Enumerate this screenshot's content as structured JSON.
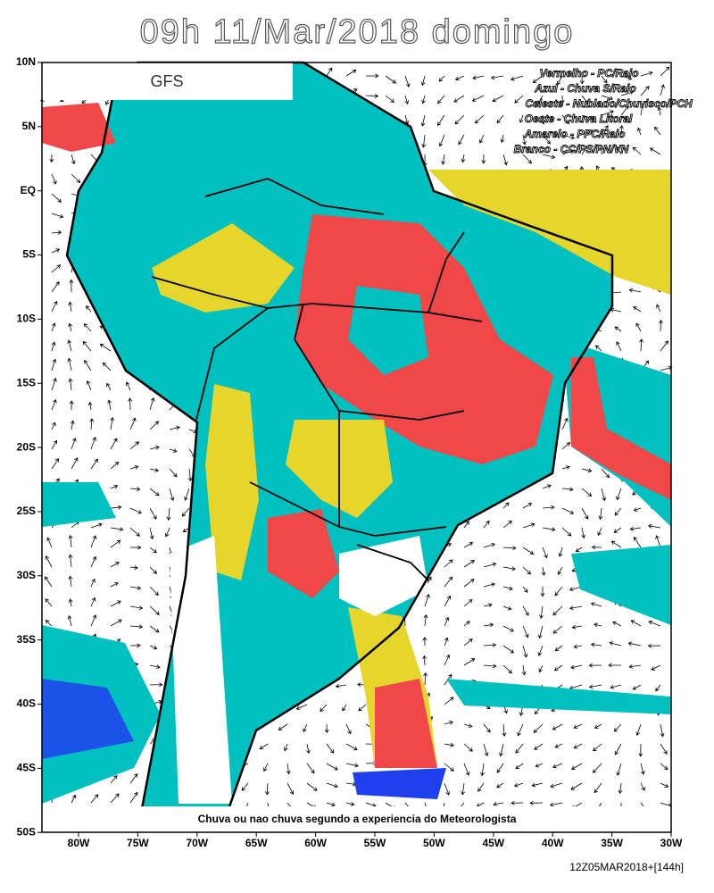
{
  "title": "09h 11/Mar/2018 domingo",
  "model": "GFS",
  "legend": [
    "Vermelho - PC/Raio",
    "Azul - Chuva S/Raio",
    "Celeste - Nublado/Chuvisco/PCH",
    "Oeste - Chuva Litoral",
    "Amarelo - PPC/Raio",
    "Branco - CC/PS/PN/VN"
  ],
  "footer": "Chuva ou nao chuva segundo a experiencia do Meteorologista",
  "timestamp": "12Z05MAR2018+[144h]",
  "lat_ticks": [
    {
      "value": 10,
      "label": "10N"
    },
    {
      "value": 5,
      "label": "5N"
    },
    {
      "value": 0,
      "label": "EQ"
    },
    {
      "value": -5,
      "label": "5S"
    },
    {
      "value": -10,
      "label": "10S"
    },
    {
      "value": -15,
      "label": "15S"
    },
    {
      "value": -20,
      "label": "20S"
    },
    {
      "value": -25,
      "label": "25S"
    },
    {
      "value": -30,
      "label": "30S"
    },
    {
      "value": -35,
      "label": "35S"
    },
    {
      "value": -40,
      "label": "40S"
    },
    {
      "value": -45,
      "label": "45S"
    },
    {
      "value": -50,
      "label": "50S"
    }
  ],
  "lon_ticks": [
    {
      "value": -80,
      "label": "80W"
    },
    {
      "value": -75,
      "label": "75W"
    },
    {
      "value": -70,
      "label": "70W"
    },
    {
      "value": -65,
      "label": "65W"
    },
    {
      "value": -60,
      "label": "60W"
    },
    {
      "value": -55,
      "label": "55W"
    },
    {
      "value": -50,
      "label": "50W"
    },
    {
      "value": -45,
      "label": "45W"
    },
    {
      "value": -40,
      "label": "40W"
    },
    {
      "value": -35,
      "label": "35W"
    },
    {
      "value": -30,
      "label": "30W"
    }
  ]
}
